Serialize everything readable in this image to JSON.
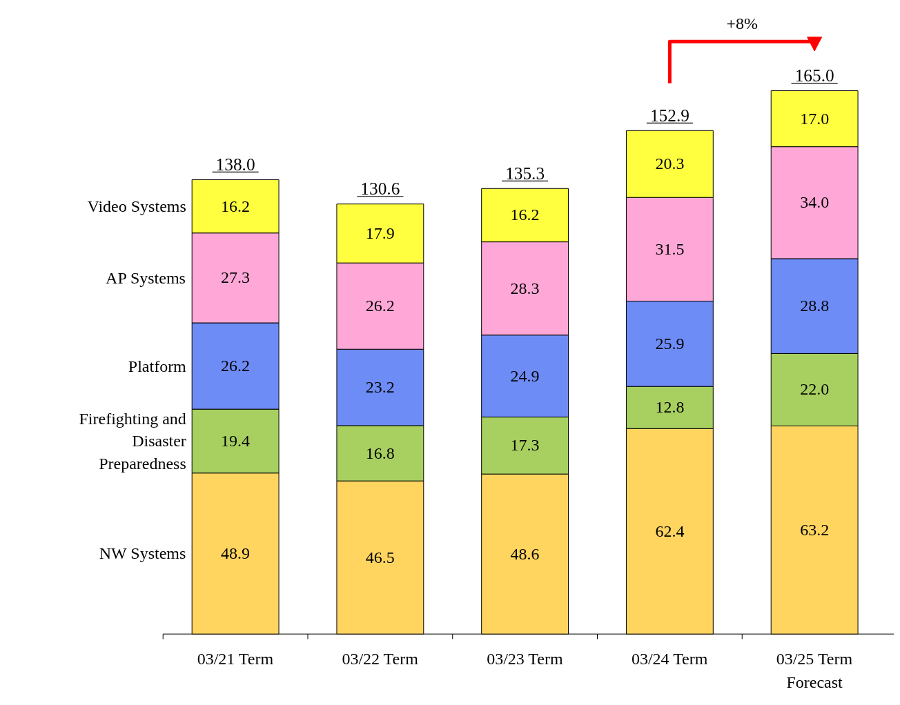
{
  "chart_data": {
    "type": "bar",
    "stacked": true,
    "legend": false,
    "grid": false,
    "categories": [
      "03/21 Term",
      "03/22 Term",
      "03/23 Term",
      "03/24 Term",
      "03/25 Term\nForecast"
    ],
    "series": [
      {
        "name": "NW Systems",
        "color": "#ffd560",
        "values": [
          48.9,
          46.5,
          48.6,
          62.4,
          63.2
        ],
        "value_labels": [
          "48.9",
          "46.5",
          "48.6",
          "62.4",
          "63.2"
        ]
      },
      {
        "name": "Firefighting and\nDisaster\nPreparedness",
        "color": "#a8d060",
        "values": [
          19.4,
          16.8,
          17.3,
          12.8,
          22.0
        ],
        "value_labels": [
          "19.4",
          "16.8",
          "17.3",
          "12.8",
          "22.0"
        ]
      },
      {
        "name": "Platform",
        "color": "#6e8cf5",
        "values": [
          26.2,
          23.2,
          24.9,
          25.9,
          28.8
        ],
        "value_labels": [
          "26.2",
          "23.2",
          "24.9",
          "25.9",
          "28.8"
        ]
      },
      {
        "name": "AP Systems",
        "color": "#ffa8d8",
        "values": [
          27.3,
          26.2,
          28.3,
          31.5,
          34.0
        ],
        "value_labels": [
          "27.3",
          "26.2",
          "28.3",
          "31.5",
          "34.0"
        ]
      },
      {
        "name": "Video Systems",
        "color": "#ffff40",
        "values": [
          16.2,
          17.9,
          16.2,
          20.3,
          17.0
        ],
        "value_labels": [
          "16.2",
          "17.9",
          "16.2",
          "20.3",
          "17.0"
        ]
      }
    ],
    "totals": [
      "138.0",
      "130.6",
      "135.3",
      "152.9",
      "165.0"
    ],
    "annotations": [
      "+8%"
    ]
  }
}
